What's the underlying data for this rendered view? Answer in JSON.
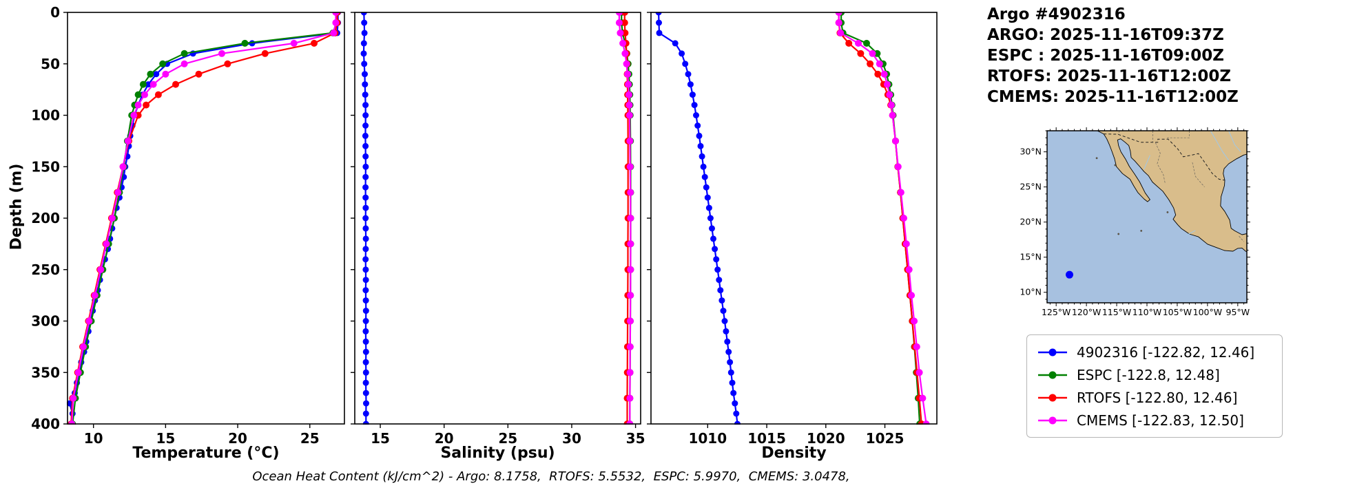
{
  "header": {
    "title": "Argo #4902316",
    "lines": [
      "ARGO: 2025-11-16T09:37Z",
      "ESPC : 2025-11-16T09:00Z",
      "RTOFS: 2025-11-16T12:00Z",
      "CMEMS: 2025-11-16T12:00Z"
    ]
  },
  "axes": {
    "depth_label": "Depth (m)"
  },
  "annotations": {
    "ocean_heat_content": "Ocean Heat Content (kJ/cm^2) - Argo: 8.1758,  RTOFS: 5.5532,  ESPC: 5.9970,  CMEMS: 3.0478,"
  },
  "colors": {
    "argo": "#0000ff",
    "espc": "#008000",
    "rtofs": "#ff0000",
    "cmems": "#ff00ff"
  },
  "chart_data": [
    {
      "type": "line",
      "xlabel": "Temperature (°C)",
      "ylabel": "Depth (m)",
      "xlim": [
        8.2,
        27.4
      ],
      "ylim": [
        0,
        400
      ],
      "y_inverted": true,
      "grid": false,
      "xticks": [
        10,
        15,
        20,
        25
      ],
      "yticks": [
        0,
        50,
        100,
        150,
        200,
        250,
        300,
        350,
        400
      ],
      "show_yticklabels": true,
      "series": [
        {
          "name": "4902316",
          "color": "#0000ff",
          "marker_size": 4.5,
          "line_width": 2.2,
          "depths": [
            0,
            10,
            20,
            30,
            40,
            50,
            60,
            70,
            80,
            90,
            100,
            110,
            120,
            130,
            140,
            150,
            160,
            170,
            180,
            190,
            200,
            210,
            220,
            230,
            240,
            250,
            260,
            270,
            280,
            290,
            300,
            310,
            320,
            330,
            340,
            350,
            360,
            370,
            380,
            390,
            400
          ],
          "values": [
            26.95,
            26.95,
            26.9,
            21.0,
            16.9,
            15.1,
            14.35,
            13.8,
            13.4,
            13.1,
            12.85,
            12.7,
            12.55,
            12.45,
            12.35,
            12.2,
            12.1,
            11.95,
            11.8,
            11.6,
            11.45,
            11.3,
            11.15,
            11.0,
            10.8,
            10.6,
            10.45,
            10.3,
            10.1,
            9.95,
            9.8,
            9.65,
            9.5,
            9.35,
            9.15,
            9.0,
            8.85,
            8.7,
            8.35,
            8.55,
            8.5
          ]
        },
        {
          "name": "ESPC",
          "color": "#008000",
          "marker_size": 5,
          "line_width": 2.2,
          "depths": [
            0,
            10,
            20,
            30,
            40,
            50,
            60,
            70,
            80,
            90,
            100,
            125,
            150,
            175,
            200,
            225,
            250,
            275,
            300,
            325,
            350,
            375,
            400
          ],
          "values": [
            26.85,
            26.85,
            26.6,
            20.5,
            16.3,
            14.8,
            13.95,
            13.45,
            13.1,
            12.85,
            12.65,
            12.35,
            12.1,
            11.8,
            11.45,
            11.05,
            10.65,
            10.25,
            9.85,
            9.45,
            9.1,
            8.75,
            8.55
          ]
        },
        {
          "name": "RTOFS",
          "color": "#ff0000",
          "marker_size": 5,
          "line_width": 2.2,
          "depths": [
            0,
            10,
            20,
            30,
            40,
            50,
            60,
            70,
            80,
            90,
            100,
            125,
            150,
            175,
            200,
            225,
            250,
            275,
            300,
            325,
            350,
            375,
            400
          ],
          "values": [
            26.9,
            26.9,
            26.75,
            25.3,
            21.9,
            19.3,
            17.3,
            15.7,
            14.5,
            13.65,
            13.1,
            12.45,
            12.05,
            11.65,
            11.25,
            10.85,
            10.45,
            10.05,
            9.65,
            9.25,
            8.9,
            8.55,
            8.45
          ]
        },
        {
          "name": "CMEMS",
          "color": "#ff00ff",
          "marker_size": 5,
          "line_width": 2.2,
          "depths": [
            0,
            10,
            20,
            30,
            40,
            50,
            60,
            70,
            80,
            90,
            100,
            125,
            150,
            175,
            200,
            225,
            250,
            275,
            300,
            325,
            350,
            375,
            400
          ],
          "values": [
            26.8,
            26.8,
            26.65,
            23.9,
            18.9,
            16.3,
            15.0,
            14.15,
            13.55,
            13.1,
            12.8,
            12.4,
            12.05,
            11.7,
            11.3,
            10.9,
            10.5,
            10.1,
            9.7,
            9.3,
            8.95,
            8.6,
            8.5
          ]
        }
      ]
    },
    {
      "type": "line",
      "xlabel": "Salinity (psu)",
      "ylabel": "Depth (m)",
      "xlim": [
        13.0,
        35.4
      ],
      "ylim": [
        0,
        400
      ],
      "y_inverted": true,
      "grid": false,
      "xticks": [
        15,
        20,
        25,
        30,
        35
      ],
      "yticks": [
        0,
        50,
        100,
        150,
        200,
        250,
        300,
        350,
        400
      ],
      "show_yticklabels": false,
      "series": [
        {
          "name": "4902316",
          "color": "#0000ff",
          "marker_size": 4.5,
          "line_width": 2.2,
          "depths": [
            0,
            10,
            20,
            30,
            40,
            50,
            60,
            70,
            80,
            90,
            100,
            110,
            120,
            130,
            140,
            150,
            160,
            170,
            180,
            190,
            200,
            210,
            220,
            230,
            240,
            250,
            260,
            270,
            280,
            290,
            300,
            310,
            320,
            330,
            340,
            350,
            360,
            370,
            380,
            390,
            400
          ],
          "values": [
            13.72,
            13.74,
            13.76,
            13.72,
            13.7,
            13.74,
            13.78,
            13.8,
            13.82,
            13.84,
            13.85,
            13.84,
            13.83,
            13.84,
            13.85,
            13.86,
            13.85,
            13.84,
            13.85,
            13.86,
            13.85,
            13.86,
            13.87,
            13.86,
            13.85,
            13.86,
            13.87,
            13.86,
            13.87,
            13.88,
            13.87,
            13.86,
            13.87,
            13.88,
            13.87,
            13.88,
            13.87,
            13.88,
            13.89,
            13.88,
            13.88
          ]
        },
        {
          "name": "ESPC",
          "color": "#008000",
          "marker_size": 5,
          "line_width": 2.2,
          "depths": [
            0,
            10,
            20,
            30,
            40,
            50,
            60,
            70,
            80,
            90,
            100,
            125,
            150,
            175,
            200,
            225,
            250,
            275,
            300,
            325,
            350,
            375,
            400
          ],
          "values": [
            33.9,
            33.9,
            33.98,
            34.18,
            34.32,
            34.42,
            34.48,
            34.52,
            34.55,
            34.57,
            34.58,
            34.6,
            34.61,
            34.62,
            34.62,
            34.62,
            34.61,
            34.6,
            34.59,
            34.58,
            34.57,
            34.56,
            34.55
          ]
        },
        {
          "name": "RTOFS",
          "color": "#ff0000",
          "marker_size": 5,
          "line_width": 2.2,
          "depths": [
            0,
            10,
            20,
            30,
            40,
            50,
            60,
            70,
            80,
            90,
            100,
            125,
            150,
            175,
            200,
            225,
            250,
            275,
            300,
            325,
            350,
            375,
            400
          ],
          "values": [
            34.15,
            34.15,
            34.18,
            34.25,
            34.3,
            34.33,
            34.35,
            34.37,
            34.38,
            34.39,
            34.4,
            34.41,
            34.41,
            34.41,
            34.41,
            34.4,
            34.4,
            34.39,
            34.38,
            34.37,
            34.36,
            34.35,
            34.35
          ]
        },
        {
          "name": "CMEMS",
          "color": "#ff00ff",
          "marker_size": 5,
          "line_width": 2.2,
          "depths": [
            0,
            10,
            20,
            30,
            40,
            50,
            60,
            70,
            80,
            90,
            100,
            125,
            150,
            175,
            200,
            225,
            250,
            275,
            300,
            325,
            350,
            375,
            400
          ],
          "values": [
            33.72,
            33.72,
            33.8,
            34.0,
            34.18,
            34.3,
            34.38,
            34.44,
            34.48,
            34.51,
            34.53,
            34.56,
            34.58,
            34.6,
            34.61,
            34.61,
            34.61,
            34.6,
            34.59,
            34.58,
            34.57,
            34.56,
            34.55
          ]
        }
      ]
    },
    {
      "type": "line",
      "xlabel": "Density",
      "ylabel": "Depth (m)",
      "xlim": [
        1005.2,
        1029.4
      ],
      "ylim": [
        0,
        400
      ],
      "y_inverted": true,
      "grid": false,
      "xticks": [
        1010,
        1015,
        1020,
        1025
      ],
      "yticks": [
        0,
        50,
        100,
        150,
        200,
        250,
        300,
        350,
        400
      ],
      "show_yticklabels": false,
      "series": [
        {
          "name": "4902316",
          "color": "#0000ff",
          "marker_size": 4.5,
          "line_width": 2.2,
          "depths": [
            0,
            10,
            20,
            30,
            40,
            50,
            60,
            70,
            80,
            90,
            100,
            110,
            120,
            130,
            140,
            150,
            160,
            170,
            180,
            190,
            200,
            210,
            220,
            230,
            240,
            250,
            260,
            270,
            280,
            290,
            300,
            310,
            320,
            330,
            340,
            350,
            360,
            370,
            380,
            390,
            400
          ],
          "values": [
            1005.85,
            1005.87,
            1005.9,
            1007.25,
            1007.8,
            1008.1,
            1008.35,
            1008.55,
            1008.72,
            1008.88,
            1009.02,
            1009.15,
            1009.28,
            1009.4,
            1009.52,
            1009.64,
            1009.76,
            1009.88,
            1010.0,
            1010.12,
            1010.24,
            1010.36,
            1010.48,
            1010.6,
            1010.72,
            1010.84,
            1010.96,
            1011.08,
            1011.2,
            1011.32,
            1011.44,
            1011.55,
            1011.66,
            1011.77,
            1011.88,
            1011.98,
            1012.08,
            1012.18,
            1012.3,
            1012.42,
            1012.52
          ]
        },
        {
          "name": "ESPC",
          "color": "#008000",
          "marker_size": 5,
          "line_width": 2.2,
          "depths": [
            0,
            10,
            20,
            30,
            40,
            50,
            60,
            70,
            80,
            90,
            100,
            125,
            150,
            175,
            200,
            225,
            250,
            275,
            300,
            325,
            350,
            375,
            400
          ],
          "values": [
            1021.3,
            1021.3,
            1021.45,
            1023.45,
            1024.35,
            1024.85,
            1025.15,
            1025.35,
            1025.5,
            1025.6,
            1025.7,
            1025.9,
            1026.1,
            1026.32,
            1026.52,
            1026.72,
            1026.92,
            1027.12,
            1027.32,
            1027.5,
            1027.66,
            1027.82,
            1027.95
          ]
        },
        {
          "name": "RTOFS",
          "color": "#ff0000",
          "marker_size": 5,
          "line_width": 2.2,
          "depths": [
            0,
            10,
            20,
            30,
            40,
            50,
            60,
            70,
            80,
            90,
            100,
            125,
            150,
            175,
            200,
            225,
            250,
            275,
            300,
            325,
            350,
            375,
            400
          ],
          "values": [
            1021.1,
            1021.1,
            1021.2,
            1021.95,
            1022.95,
            1023.75,
            1024.4,
            1024.9,
            1025.25,
            1025.5,
            1025.65,
            1025.9,
            1026.1,
            1026.32,
            1026.52,
            1026.72,
            1026.92,
            1027.12,
            1027.32,
            1027.52,
            1027.72,
            1027.92,
            1028.1
          ]
        },
        {
          "name": "CMEMS",
          "color": "#ff00ff",
          "marker_size": 5,
          "line_width": 2.2,
          "depths": [
            0,
            10,
            20,
            30,
            40,
            50,
            60,
            70,
            80,
            90,
            100,
            125,
            150,
            175,
            200,
            225,
            250,
            275,
            300,
            325,
            350,
            375,
            400
          ],
          "values": [
            1021.1,
            1021.1,
            1021.25,
            1022.75,
            1023.95,
            1024.55,
            1024.95,
            1025.2,
            1025.4,
            1025.55,
            1025.65,
            1025.9,
            1026.12,
            1026.36,
            1026.6,
            1026.82,
            1027.05,
            1027.25,
            1027.48,
            1027.7,
            1027.92,
            1028.2,
            1028.5
          ]
        }
      ]
    }
  ],
  "map": {
    "lon_labels": [
      "125°W",
      "120°W",
      "115°W",
      "110°W",
      "105°W",
      "100°W",
      "95°W"
    ],
    "lat_labels": [
      "10°N",
      "15°N",
      "20°N",
      "25°N",
      "30°N"
    ],
    "lon_ticks": [
      -125,
      -120,
      -115,
      -110,
      -105,
      -100,
      -95
    ],
    "lat_ticks": [
      10,
      15,
      20,
      25,
      30
    ],
    "lon_range": [
      -126.5,
      -93.5
    ],
    "lat_range": [
      8.5,
      33
    ],
    "marker": {
      "lon": -122.8,
      "lat": 12.5,
      "color": "#0000ff"
    },
    "land_color": "#d9bd8b",
    "ocean_color": "#a7c1e0"
  },
  "legend": {
    "items": [
      {
        "label": "4902316 [-122.82, 12.46]",
        "color": "#0000ff"
      },
      {
        "label": "ESPC [-122.8, 12.48]",
        "color": "#008000"
      },
      {
        "label": "RTOFS [-122.80, 12.46]",
        "color": "#ff0000"
      },
      {
        "label": "CMEMS [-122.83, 12.50]",
        "color": "#ff00ff"
      }
    ]
  }
}
